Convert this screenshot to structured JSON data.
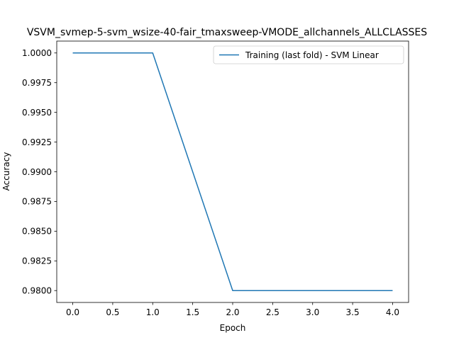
{
  "chart_data": {
    "type": "line",
    "title": "VSVM_svmep-5-svm_wsize-40-fair_tmaxsweep-VMODE_allchannels_ALLCLASSES",
    "xlabel": "Epoch",
    "ylabel": "Accuracy",
    "xlim": [
      -0.2,
      4.2
    ],
    "ylim": [
      0.979,
      1.001
    ],
    "x_ticks": [
      0.0,
      0.5,
      1.0,
      1.5,
      2.0,
      2.5,
      3.0,
      3.5,
      4.0
    ],
    "x_tick_labels": [
      "0.0",
      "0.5",
      "1.0",
      "1.5",
      "2.0",
      "2.5",
      "3.0",
      "3.5",
      "4.0"
    ],
    "y_ticks": [
      0.98,
      0.9825,
      0.985,
      0.9875,
      0.99,
      0.9925,
      0.995,
      0.9975,
      1.0
    ],
    "y_tick_labels": [
      "0.9800",
      "0.9825",
      "0.9850",
      "0.9875",
      "0.9900",
      "0.9925",
      "0.9950",
      "0.9975",
      "1.0000"
    ],
    "grid": false,
    "legend": {
      "placement": "top-right"
    },
    "series": [
      {
        "name": "Training (last fold) - SVM Linear",
        "color": "#1f77b4",
        "x": [
          0,
          1,
          2,
          3,
          4
        ],
        "values": [
          1.0,
          1.0,
          0.98,
          0.98,
          0.98
        ]
      }
    ]
  }
}
